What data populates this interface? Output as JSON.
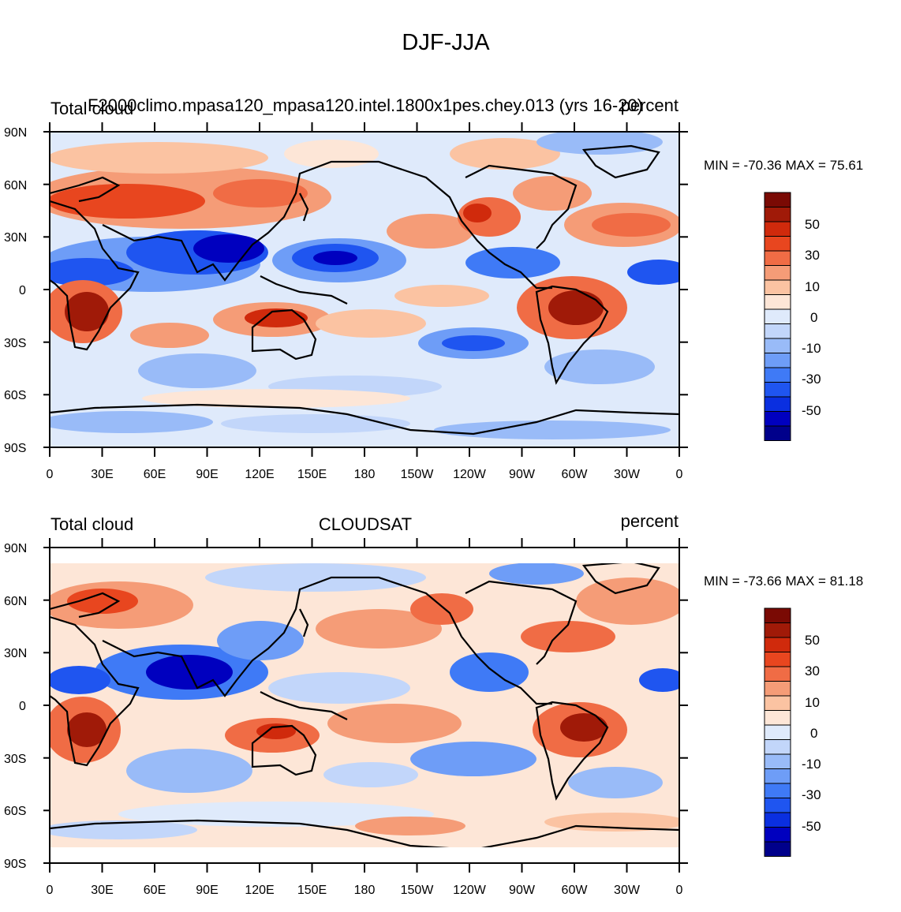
{
  "title": "DJF-JJA",
  "colors": {
    "levels": [
      "#00008b",
      "#0000bf",
      "#0a2fe0",
      "#1f55f0",
      "#3f7af6",
      "#6e9df7",
      "#99bbf8",
      "#c2d6fa",
      "#dfeafb",
      "#fde6d7",
      "#fbc3a2",
      "#f59c77",
      "#f06c45",
      "#e8461f",
      "#d02a0c",
      "#a01a08",
      "#7a0a04"
    ],
    "coast": "#000000"
  },
  "axes": {
    "lat_ticks": [
      "90N",
      "60N",
      "30N",
      "0",
      "30S",
      "60S",
      "90S"
    ],
    "lon_ticks": [
      "0",
      "30E",
      "60E",
      "90E",
      "120E",
      "150E",
      "180",
      "150W",
      "120W",
      "90W",
      "60W",
      "30W",
      "0"
    ]
  },
  "colorbar": {
    "labels": [
      "50",
      "30",
      "10",
      "0",
      "-10",
      "-30",
      "-50"
    ]
  },
  "panels": [
    {
      "left_title": "Total cloud",
      "center_title": "F2000climo.mpasa120_mpasa120.intel.1800x1pes.chey.013 (yrs 16-20)",
      "right_title": "percent",
      "min_label": "MIN = -70.36",
      "max_label": "MAX =  75.61"
    },
    {
      "left_title": "Total cloud",
      "center_title": "CLOUDSAT",
      "right_title": "percent",
      "min_label": "MIN = -73.66",
      "max_label": "MAX =  81.18"
    }
  ]
}
